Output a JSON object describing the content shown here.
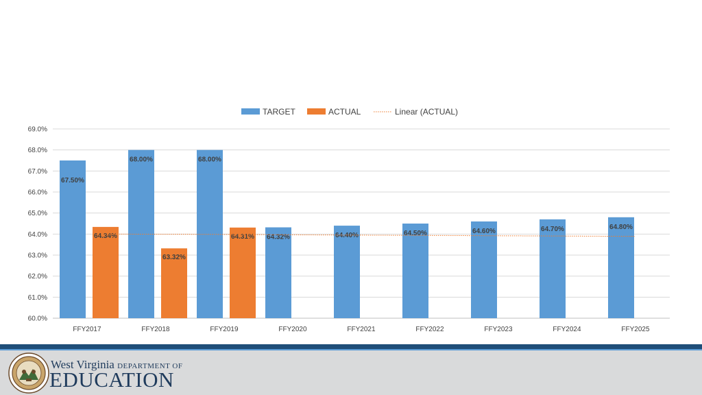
{
  "chart_data": {
    "type": "bar",
    "categories": [
      "FFY2017",
      "FFY2018",
      "FFY2019",
      "FFY2020",
      "FFY2021",
      "FFY2022",
      "FFY2023",
      "FFY2024",
      "FFY2025"
    ],
    "series": [
      {
        "name": "TARGET",
        "color": "#5b9bd5",
        "values": [
          67.5,
          68.0,
          68.0,
          64.32,
          64.4,
          64.5,
          64.6,
          64.7,
          64.8
        ],
        "labels": [
          "67.50%",
          "68.00%",
          "68.00%",
          "64.32%",
          "64.40%",
          "64.50%",
          "64.60%",
          "64.70%",
          "64.80%"
        ]
      },
      {
        "name": "ACTUAL",
        "color": "#ed7d31",
        "values": [
          64.34,
          63.32,
          64.31,
          null,
          null,
          null,
          null,
          null,
          null
        ],
        "labels": [
          "64.34%",
          "63.32%",
          "64.31%",
          null,
          null,
          null,
          null,
          null,
          null
        ]
      }
    ],
    "trendline": {
      "name": "Linear (ACTUAL)",
      "color": "#ed7d31",
      "style": "dotted",
      "values": [
        64.0,
        63.99,
        63.98,
        63.965,
        63.95,
        63.935,
        63.92,
        63.905,
        63.89
      ]
    },
    "y_ticks": [
      "60.0%",
      "61.0%",
      "62.0%",
      "63.0%",
      "64.0%",
      "65.0%",
      "66.0%",
      "67.0%",
      "68.0%",
      "69.0%"
    ],
    "ylim": [
      60,
      69
    ],
    "grid": true,
    "legend_position": "top-center",
    "title": "",
    "xlabel": "",
    "ylabel": ""
  },
  "footer": {
    "org_name_line1": "West Virginia",
    "org_name_dept": "DEPARTMENT OF",
    "org_name_line2": "EDUCATION",
    "band_color_dark": "#1f4e79",
    "band_color_light": "#5b9bd5",
    "seal_icon": "state-seal-icon"
  }
}
